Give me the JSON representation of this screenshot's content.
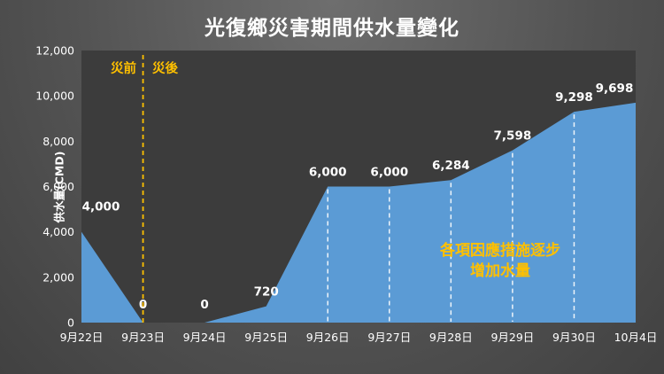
{
  "title": "光復鄉災害期間供水量變化",
  "chart_data": {
    "type": "area",
    "title": "光復鄉災害期間供水量變化",
    "xlabel": "",
    "ylabel": "供水量(CMD)",
    "categories": [
      "9月22日",
      "9月23日",
      "9月24日",
      "9月25日",
      "9月26日",
      "9月27日",
      "9月28日",
      "9月29日",
      "9月30日",
      "10月4日"
    ],
    "values": [
      4000,
      0,
      0,
      720,
      6000,
      6000,
      6284,
      7598,
      9298,
      9698
    ],
    "value_labels": [
      "4,000",
      "0",
      "0",
      "720",
      "6,000",
      "6,000",
      "6,284",
      "7,598",
      "9,298",
      "9,698"
    ],
    "ylim": [
      0,
      12000
    ],
    "ytick_step": 2000,
    "ytick_labels": [
      "0",
      "2,000",
      "4,000",
      "6,000",
      "8,000",
      "10,000",
      "12,000"
    ],
    "grid": false,
    "legend": "none",
    "area_color": "#5B9BD5",
    "plot_bg_color": "#3C3C3C",
    "text_color": "#FFFFFF",
    "divider": {
      "at_category_index": 1,
      "color": "#FFC000",
      "pre_label": "災前",
      "post_label": "災後"
    },
    "guide_lines": {
      "category_indices": [
        4,
        5,
        6,
        7,
        8
      ],
      "color": "#FFFFFF",
      "style": "dashed"
    },
    "annotation": {
      "lines": [
        "各項因應措施逐步",
        "增加水量"
      ],
      "color": "#FFC000"
    }
  }
}
